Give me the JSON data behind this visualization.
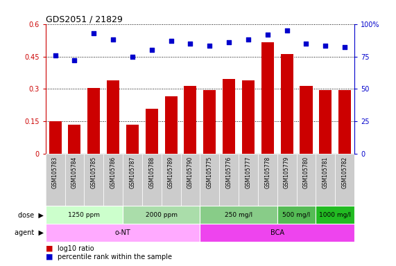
{
  "title": "GDS2051 / 21829",
  "samples": [
    "GSM105783",
    "GSM105784",
    "GSM105785",
    "GSM105786",
    "GSM105787",
    "GSM105788",
    "GSM105789",
    "GSM105790",
    "GSM105775",
    "GSM105776",
    "GSM105777",
    "GSM105778",
    "GSM105779",
    "GSM105780",
    "GSM105781",
    "GSM105782"
  ],
  "log10_ratio": [
    0.15,
    0.135,
    0.305,
    0.34,
    0.135,
    0.21,
    0.265,
    0.315,
    0.295,
    0.345,
    0.34,
    0.515,
    0.46,
    0.315,
    0.295,
    0.295
  ],
  "percentile_rank": [
    76,
    72,
    93,
    88,
    75,
    80,
    87,
    85,
    83,
    86,
    88,
    92,
    95,
    85,
    83,
    82
  ],
  "bar_color": "#cc0000",
  "dot_color": "#0000cc",
  "ylim_left": [
    0,
    0.6
  ],
  "ylim_right": [
    0,
    100
  ],
  "yticks_left": [
    0,
    0.15,
    0.3,
    0.45,
    0.6
  ],
  "yticks_left_labels": [
    "0",
    "0.15",
    "0.3",
    "0.45",
    "0.6"
  ],
  "yticks_right": [
    0,
    25,
    50,
    75,
    100
  ],
  "yticks_right_labels": [
    "0",
    "25",
    "50",
    "75",
    "100%"
  ],
  "dose_colors": [
    "#ccffcc",
    "#aaddaa",
    "#88cc88",
    "#55bb55",
    "#22bb22"
  ],
  "dose_groups": [
    {
      "label": "1250 ppm",
      "start": 0,
      "end": 4
    },
    {
      "label": "2000 ppm",
      "start": 4,
      "end": 8
    },
    {
      "label": "250 mg/l",
      "start": 8,
      "end": 12
    },
    {
      "label": "500 mg/l",
      "start": 12,
      "end": 14
    },
    {
      "label": "1000 mg/l",
      "start": 14,
      "end": 16
    }
  ],
  "agent_colors": [
    "#ffaaff",
    "#ee44ee"
  ],
  "agent_groups": [
    {
      "label": "o-NT",
      "start": 0,
      "end": 8
    },
    {
      "label": "BCA",
      "start": 8,
      "end": 16
    }
  ],
  "dose_row_label": "dose",
  "agent_row_label": "agent",
  "legend_bar": "log10 ratio",
  "legend_dot": "percentile rank within the sample",
  "bg_color": "#ffffff",
  "sample_label_bg": "#cccccc",
  "label_col_bg": "#ffffff"
}
